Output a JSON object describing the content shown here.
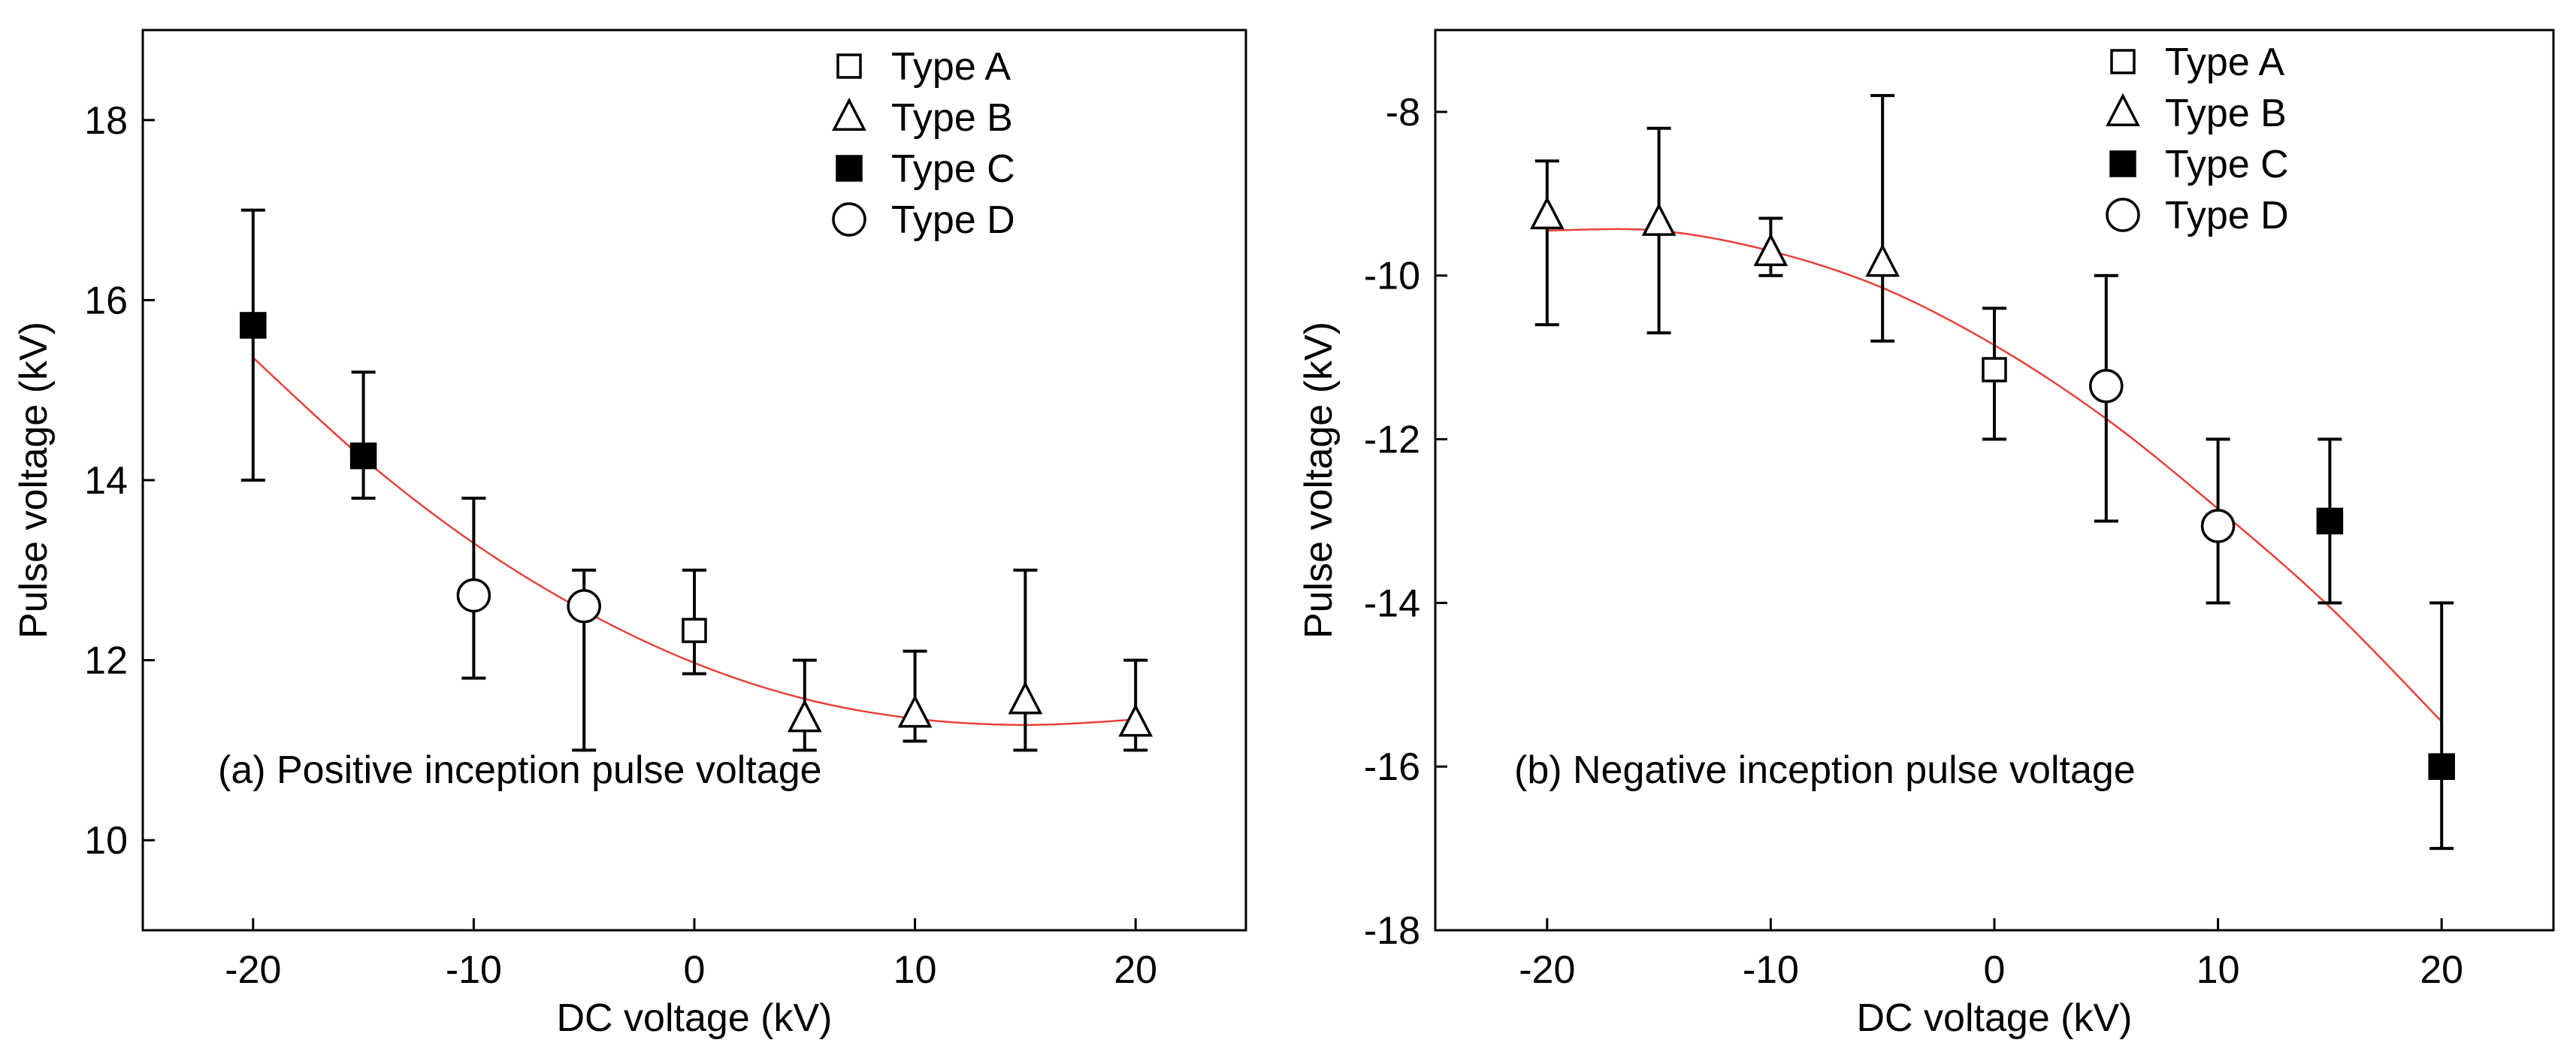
{
  "chart_data": [
    {
      "type": "scatter",
      "panel": "a",
      "annotation": "(a) Positive inception pulse voltage",
      "xlabel": "DC voltage (kV)",
      "ylabel": "Pulse voltage (kV)",
      "xlim": [
        -25,
        25
      ],
      "ylim": [
        9,
        19
      ],
      "xticks": [
        -20,
        -10,
        0,
        10,
        20
      ],
      "yticks": [
        10,
        12,
        14,
        16,
        18
      ],
      "xtick_labels": [
        "-20",
        "-10",
        "0",
        "10",
        "20"
      ],
      "ytick_labels": [
        "10",
        "12",
        "14",
        "16",
        "18"
      ],
      "legend": [
        {
          "label": "Type A",
          "marker": "open-square"
        },
        {
          "label": "Type B",
          "marker": "open-triangle"
        },
        {
          "label": "Type C",
          "marker": "filled-square"
        },
        {
          "label": "Type D",
          "marker": "open-circle"
        }
      ],
      "legend_position": "top-right",
      "points": [
        {
          "x": -20,
          "y": 15.72,
          "err_low": 14.0,
          "err_high": 17.0,
          "type": "C"
        },
        {
          "x": -15,
          "y": 14.27,
          "err_low": 13.8,
          "err_high": 15.2,
          "type": "C"
        },
        {
          "x": -10,
          "y": 12.72,
          "err_low": 11.8,
          "err_high": 13.8,
          "type": "D"
        },
        {
          "x": -5,
          "y": 12.6,
          "err_low": 11.0,
          "err_high": 13.0,
          "type": "D"
        },
        {
          "x": 0,
          "y": 12.33,
          "err_low": 11.85,
          "err_high": 13.0,
          "type": "A"
        },
        {
          "x": 5,
          "y": 11.35,
          "err_low": 11.0,
          "err_high": 12.0,
          "type": "B"
        },
        {
          "x": 10,
          "y": 11.4,
          "err_low": 11.1,
          "err_high": 12.1,
          "type": "B"
        },
        {
          "x": 15,
          "y": 11.55,
          "err_low": 11.0,
          "err_high": 13.0,
          "type": "B"
        },
        {
          "x": 20,
          "y": 11.3,
          "err_low": 11.0,
          "err_high": 12.0,
          "type": "B"
        }
      ],
      "fit": {
        "color": "#e8413a",
        "points": [
          [
            -20,
            15.36
          ],
          [
            -15,
            14.24
          ],
          [
            -10,
            13.3
          ],
          [
            -5,
            12.55
          ],
          [
            0,
            11.97
          ],
          [
            5,
            11.57
          ],
          [
            10,
            11.35
          ],
          [
            15,
            11.28
          ],
          [
            20,
            11.34
          ]
        ]
      }
    },
    {
      "type": "scatter",
      "panel": "b",
      "annotation": "(b) Negative inception pulse voltage",
      "xlabel": "DC voltage (kV)",
      "ylabel": "Pulse voltage (kV)",
      "xlim": [
        -25,
        25
      ],
      "ylim": [
        -18,
        -7
      ],
      "xticks": [
        -20,
        -10,
        0,
        10,
        20
      ],
      "yticks": [
        -18,
        -16,
        -14,
        -12,
        -10,
        -8
      ],
      "xtick_labels": [
        "-20",
        "-10",
        "0",
        "10",
        "20"
      ],
      "ytick_labels": [
        "-18",
        "-16",
        "-14",
        "-12",
        "-10",
        "-8"
      ],
      "legend": [
        {
          "label": "Type A",
          "marker": "open-square"
        },
        {
          "label": "Type B",
          "marker": "open-triangle"
        },
        {
          "label": "Type C",
          "marker": "filled-square"
        },
        {
          "label": "Type D",
          "marker": "open-circle"
        }
      ],
      "legend_position": "top-right",
      "points": [
        {
          "x": -20,
          "y": -9.27,
          "err_low": -10.6,
          "err_high": -8.6,
          "type": "B"
        },
        {
          "x": -15,
          "y": -9.35,
          "err_low": -10.7,
          "err_high": -8.2,
          "type": "B"
        },
        {
          "x": -10,
          "y": -9.72,
          "err_low": -10.0,
          "err_high": -9.3,
          "type": "B"
        },
        {
          "x": -5,
          "y": -9.85,
          "err_low": -10.8,
          "err_high": -7.8,
          "type": "B"
        },
        {
          "x": 0,
          "y": -11.15,
          "err_low": -12.0,
          "err_high": -10.4,
          "type": "A"
        },
        {
          "x": 5,
          "y": -11.35,
          "err_low": -13.0,
          "err_high": -10.0,
          "type": "D"
        },
        {
          "x": 10,
          "y": -13.06,
          "err_low": -14.0,
          "err_high": -12.0,
          "type": "D"
        },
        {
          "x": 15,
          "y": -13.0,
          "err_low": -14.0,
          "err_high": -12.0,
          "type": "C"
        },
        {
          "x": 20,
          "y": -16.0,
          "err_low": -17.0,
          "err_high": -14.0,
          "type": "C"
        }
      ],
      "fit": {
        "color": "#e8413a",
        "points": [
          [
            -20,
            -9.45
          ],
          [
            -15,
            -9.45
          ],
          [
            -10,
            -9.7
          ],
          [
            -5,
            -10.15
          ],
          [
            0,
            -10.85
          ],
          [
            5,
            -11.75
          ],
          [
            10,
            -12.85
          ],
          [
            15,
            -14.05
          ],
          [
            20,
            -15.45
          ]
        ]
      }
    }
  ]
}
